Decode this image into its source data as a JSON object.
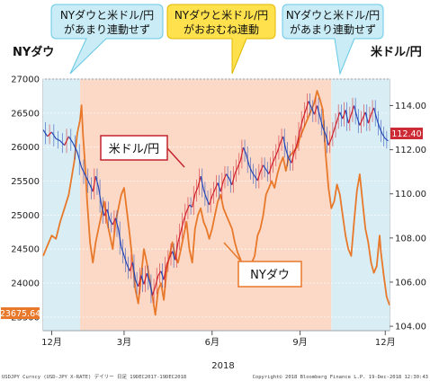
{
  "chart_data": {
    "type": "line",
    "left_axis_label": "NYダウ",
    "right_axis_label": "米ドル/円",
    "left_ylim": [
      23300,
      27000
    ],
    "right_ylim": [
      103.8,
      115.2
    ],
    "left_ticks": [
      "27000",
      "26500",
      "26000",
      "25500",
      "25000",
      "24500",
      "24000",
      "23500"
    ],
    "right_ticks": [
      "114.00",
      "112.00",
      "110.00",
      "108.00",
      "106.00",
      "104.00"
    ],
    "x_ticks": [
      "12月",
      "3月",
      "6月",
      "9月",
      "12月"
    ],
    "x_year": "2018",
    "last_value_left": "23675.64",
    "last_value_right": "112.40",
    "series": [
      {
        "name": "NYダウ",
        "color": "#e8782a",
        "points": [
          [
            0,
            24400
          ],
          [
            3,
            24550
          ],
          [
            6,
            24700
          ],
          [
            9,
            24650
          ],
          [
            12,
            24900
          ],
          [
            15,
            25100
          ],
          [
            18,
            25300
          ],
          [
            20,
            25550
          ],
          [
            22,
            25800
          ],
          [
            24,
            26200
          ],
          [
            26,
            26400
          ],
          [
            27,
            26616
          ],
          [
            28,
            26200
          ],
          [
            30,
            25600
          ],
          [
            31,
            25200
          ],
          [
            33,
            24600
          ],
          [
            35,
            24300
          ],
          [
            37,
            24600
          ],
          [
            39,
            24800
          ],
          [
            41,
            25000
          ],
          [
            43,
            25200
          ],
          [
            45,
            24900
          ],
          [
            47,
            24700
          ],
          [
            49,
            24500
          ],
          [
            51,
            24900
          ],
          [
            53,
            25100
          ],
          [
            55,
            25300
          ],
          [
            57,
            25400
          ],
          [
            59,
            25050
          ],
          [
            61,
            24700
          ],
          [
            63,
            24300
          ],
          [
            65,
            23900
          ],
          [
            67,
            23700
          ],
          [
            69,
            24100
          ],
          [
            71,
            24500
          ],
          [
            73,
            24300
          ],
          [
            75,
            24050
          ],
          [
            77,
            23800
          ],
          [
            79,
            23533
          ],
          [
            81,
            23900
          ],
          [
            83,
            24000
          ],
          [
            85,
            23750
          ],
          [
            87,
            24200
          ],
          [
            89,
            24400
          ],
          [
            91,
            24600
          ],
          [
            93,
            24400
          ],
          [
            95,
            24300
          ],
          [
            97,
            24500
          ],
          [
            99,
            24700
          ],
          [
            101,
            24900
          ],
          [
            103,
            24500
          ],
          [
            105,
            24300
          ],
          [
            107,
            24800
          ],
          [
            109,
            25000
          ],
          [
            111,
            25100
          ],
          [
            113,
            24900
          ],
          [
            115,
            24800
          ],
          [
            117,
            24650
          ],
          [
            119,
            24800
          ],
          [
            121,
            25000
          ],
          [
            123,
            25200
          ],
          [
            125,
            25300
          ],
          [
            127,
            25100
          ],
          [
            129,
            25000
          ],
          [
            131,
            24900
          ],
          [
            133,
            24800
          ],
          [
            135,
            24600
          ],
          [
            137,
            24450
          ],
          [
            139,
            24350
          ],
          [
            141,
            24150
          ],
          [
            143,
            24000
          ],
          [
            145,
            24200
          ],
          [
            147,
            24300
          ],
          [
            149,
            24400
          ],
          [
            151,
            24700
          ],
          [
            153,
            24800
          ],
          [
            155,
            25000
          ],
          [
            157,
            25300
          ],
          [
            159,
            25400
          ],
          [
            161,
            25500
          ],
          [
            163,
            25400
          ],
          [
            165,
            25600
          ],
          [
            167,
            25750
          ],
          [
            169,
            25850
          ],
          [
            171,
            25650
          ],
          [
            173,
            25850
          ],
          [
            175,
            25900
          ],
          [
            177,
            25950
          ],
          [
            179,
            26000
          ],
          [
            181,
            26150
          ],
          [
            183,
            26250
          ],
          [
            185,
            26350
          ],
          [
            187,
            26450
          ],
          [
            189,
            26550
          ],
          [
            191,
            26650
          ],
          [
            193,
            26828
          ],
          [
            195,
            26700
          ],
          [
            197,
            26550
          ],
          [
            199,
            25900
          ],
          [
            201,
            25400
          ],
          [
            203,
            25100
          ],
          [
            205,
            25200
          ],
          [
            207,
            25450
          ],
          [
            209,
            25300
          ],
          [
            211,
            25000
          ],
          [
            213,
            24700
          ],
          [
            215,
            24500
          ],
          [
            217,
            24400
          ],
          [
            219,
            24900
          ],
          [
            221,
            25350
          ],
          [
            223,
            25600
          ],
          [
            225,
            25200
          ],
          [
            227,
            24800
          ],
          [
            229,
            24600
          ],
          [
            231,
            24300
          ],
          [
            233,
            24150
          ],
          [
            235,
            24250
          ],
          [
            237,
            24700
          ],
          [
            238,
            24450
          ],
          [
            240,
            24100
          ],
          [
            242,
            23800
          ],
          [
            244,
            23675
          ]
        ]
      },
      {
        "name": "米ドル/円",
        "color": "#1f3d8f",
        "points": [
          [
            0,
            112.9
          ],
          [
            3,
            112.6
          ],
          [
            6,
            112.8
          ],
          [
            9,
            112.5
          ],
          [
            12,
            112.4
          ],
          [
            15,
            112.2
          ],
          [
            18,
            112.6
          ],
          [
            21,
            112.3
          ],
          [
            24,
            111.9
          ],
          [
            27,
            111.2
          ],
          [
            30,
            110.8
          ],
          [
            33,
            110.4
          ],
          [
            35,
            110.1
          ],
          [
            37,
            110.8
          ],
          [
            39,
            110.3
          ],
          [
            41,
            109.5
          ],
          [
            43,
            109.0
          ],
          [
            45,
            109.3
          ],
          [
            47,
            108.8
          ],
          [
            49,
            108.6
          ],
          [
            51,
            108.9
          ],
          [
            53,
            108.4
          ],
          [
            55,
            107.6
          ],
          [
            57,
            107.2
          ],
          [
            59,
            106.8
          ],
          [
            61,
            106.5
          ],
          [
            63,
            106.9
          ],
          [
            65,
            106.1
          ],
          [
            67,
            105.8
          ],
          [
            69,
            106.3
          ],
          [
            71,
            105.9
          ],
          [
            73,
            106.4
          ],
          [
            75,
            106.0
          ],
          [
            77,
            105.4
          ],
          [
            79,
            105.8
          ],
          [
            81,
            106.3
          ],
          [
            83,
            106.5
          ],
          [
            85,
            106.1
          ],
          [
            87,
            106.8
          ],
          [
            89,
            107.1
          ],
          [
            91,
            107.4
          ],
          [
            93,
            107.0
          ],
          [
            95,
            107.8
          ],
          [
            97,
            108.3
          ],
          [
            99,
            108.8
          ],
          [
            101,
            109.2
          ],
          [
            103,
            109.5
          ],
          [
            105,
            109.4
          ],
          [
            107,
            110.0
          ],
          [
            109,
            110.3
          ],
          [
            111,
            110.8
          ],
          [
            113,
            110.2
          ],
          [
            115,
            109.8
          ],
          [
            117,
            109.5
          ],
          [
            119,
            109.9
          ],
          [
            121,
            110.2
          ],
          [
            123,
            110.5
          ],
          [
            125,
            110.1
          ],
          [
            127,
            110.6
          ],
          [
            129,
            110.9
          ],
          [
            131,
            110.7
          ],
          [
            133,
            110.4
          ],
          [
            135,
            110.9
          ],
          [
            137,
            111.2
          ],
          [
            139,
            111.5
          ],
          [
            141,
            112.1
          ],
          [
            143,
            111.8
          ],
          [
            145,
            111.3
          ],
          [
            147,
            111.0
          ],
          [
            149,
            110.8
          ],
          [
            151,
            110.6
          ],
          [
            153,
            111.0
          ],
          [
            155,
            111.3
          ],
          [
            157,
            111.1
          ],
          [
            159,
            110.9
          ],
          [
            161,
            111.3
          ],
          [
            163,
            111.6
          ],
          [
            165,
            111.9
          ],
          [
            167,
            112.3
          ],
          [
            169,
            112.6
          ],
          [
            171,
            112.0
          ],
          [
            173,
            111.6
          ],
          [
            175,
            111.4
          ],
          [
            177,
            111.9
          ],
          [
            179,
            112.3
          ],
          [
            181,
            112.9
          ],
          [
            183,
            113.4
          ],
          [
            185,
            113.8
          ],
          [
            187,
            114.2
          ],
          [
            189,
            113.9
          ],
          [
            191,
            113.6
          ],
          [
            193,
            114.0
          ],
          [
            195,
            113.5
          ],
          [
            197,
            113.0
          ],
          [
            199,
            112.7
          ],
          [
            201,
            112.2
          ],
          [
            203,
            112.5
          ],
          [
            205,
            112.9
          ],
          [
            207,
            113.3
          ],
          [
            209,
            113.7
          ],
          [
            211,
            113.4
          ],
          [
            213,
            113.8
          ],
          [
            215,
            113.2
          ],
          [
            217,
            113.6
          ],
          [
            219,
            114.0
          ],
          [
            221,
            113.5
          ],
          [
            223,
            113.1
          ],
          [
            225,
            113.4
          ],
          [
            227,
            113.7
          ],
          [
            229,
            113.2
          ],
          [
            231,
            113.6
          ],
          [
            233,
            113.9
          ],
          [
            235,
            113.4
          ],
          [
            237,
            113.0
          ],
          [
            239,
            112.7
          ],
          [
            241,
            112.5
          ],
          [
            243,
            112.4
          ]
        ]
      }
    ],
    "annotations": [
      {
        "text1": "NYダウと米ドル/円",
        "text2": "があまり連動せず",
        "style": "light-blue"
      },
      {
        "text1": "NYダウと米ドル/円",
        "text2": "がおおむね連動",
        "style": "yellow"
      },
      {
        "text1": "NYダウと米ドル/円",
        "text2": "があまり連動せず",
        "style": "light-blue"
      }
    ],
    "series_labels": {
      "fx": "米ドル/円",
      "dow": "NYダウ"
    },
    "shading": [
      {
        "from": 0,
        "to": 26,
        "color": "#d9eef4"
      },
      {
        "from": 26,
        "to": 203,
        "color": "#fbd9c6"
      },
      {
        "from": 203,
        "to": 244,
        "color": "#d9eef4"
      }
    ],
    "x_tick_positions": [
      6,
      57,
      119,
      181,
      241
    ],
    "footer_left": "USDJPY Curncy (USD-JPY X-RATE) デイリー 日足 19DEC2017-19DEC2018",
    "footer_right": "Copyright© 2018 Bloomberg Finance L.P.   19-Dec-2018 12:30:43"
  }
}
